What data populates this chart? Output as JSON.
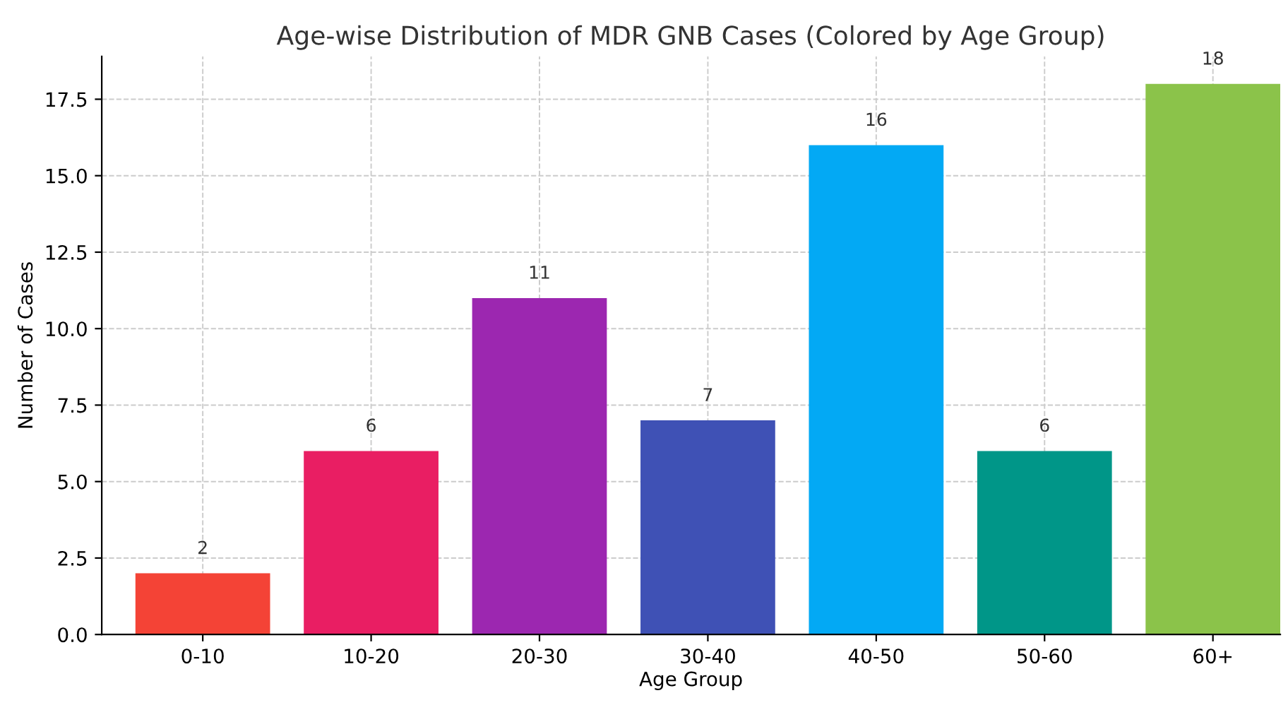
{
  "chart_data": {
    "type": "bar",
    "title": "Age-wise Distribution of MDR GNB Cases (Colored by Age Group)",
    "xlabel": "Age Group",
    "ylabel": "Number of Cases",
    "categories": [
      "0-10",
      "10-20",
      "20-30",
      "30-40",
      "40-50",
      "50-60",
      "60+"
    ],
    "values": [
      2,
      6,
      11,
      7,
      16,
      6,
      18
    ],
    "colors": [
      "#f44336",
      "#e91e63",
      "#9c27b0",
      "#3f51b5",
      "#03a9f4",
      "#009688",
      "#8bc34a"
    ],
    "ylim": [
      0,
      18.9
    ],
    "yticks": [
      {
        "value": 0,
        "label": "0.0"
      },
      {
        "value": 2.5,
        "label": "2.5"
      },
      {
        "value": 5,
        "label": "5.0"
      },
      {
        "value": 7.5,
        "label": "7.5"
      },
      {
        "value": 10,
        "label": "10.0"
      },
      {
        "value": 12.5,
        "label": "12.5"
      },
      {
        "value": 15,
        "label": "15.0"
      },
      {
        "value": 17.5,
        "label": "17.5"
      }
    ],
    "grid": true,
    "data_labels": true
  }
}
